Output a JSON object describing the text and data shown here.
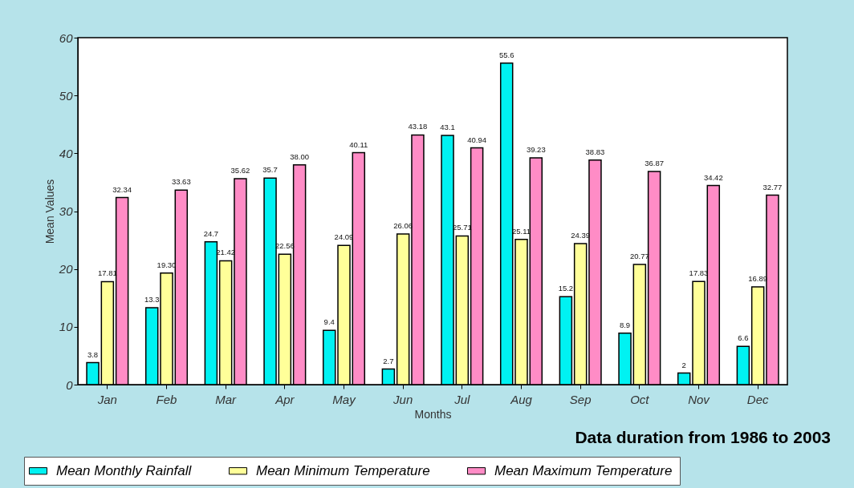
{
  "chart_data": {
    "type": "bar",
    "categories": [
      "Jan",
      "Feb",
      "Mar",
      "Apr",
      "May",
      "Jun",
      "Jul",
      "Aug",
      "Sep",
      "Oct",
      "Nov",
      "Dec"
    ],
    "xlabel": "Months",
    "ylabel": "Mean Values",
    "ylim": [
      0,
      60
    ],
    "yticks": [
      0,
      10,
      20,
      30,
      40,
      50,
      60
    ],
    "grid": false,
    "legend": "bottom",
    "annotations": [
      "Data duration from 1986 to 2003"
    ],
    "series": [
      {
        "name": "Mean Monthly Rainfall",
        "color": "#00f2f2",
        "values": [
          3.8,
          13.3,
          24.7,
          35.7,
          9.4,
          2.7,
          43.1,
          55.6,
          15.2,
          8.9,
          2,
          6.6
        ],
        "value_labels": [
          "3.8",
          "13.3",
          "24.7",
          "35.7",
          "9.4",
          "2.7",
          "43.1",
          "55.6",
          "15.2",
          "8.9",
          "2",
          "6.6"
        ]
      },
      {
        "name": "Mean Minimum Temperature",
        "color": "#ffff99",
        "values": [
          17.81,
          19.3,
          21.42,
          22.56,
          24.09,
          26.06,
          25.71,
          25.11,
          24.39,
          20.77,
          17.83,
          16.89
        ],
        "value_labels": [
          "17.81",
          "19.30",
          "21.42",
          "22.56",
          "24.09",
          "26.06",
          "25.71",
          "25.11",
          "24.39",
          "20.77",
          "17.83",
          "16.89"
        ]
      },
      {
        "name": "Mean Maximum Temperature",
        "color": "#ff8cc6",
        "values": [
          32.34,
          33.63,
          35.62,
          38.0,
          40.11,
          43.18,
          40.94,
          39.23,
          38.83,
          36.87,
          34.42,
          32.77
        ],
        "value_labels": [
          "32.34",
          "33.63",
          "35.62",
          "38.00",
          "40.11",
          "43.18",
          "40.94",
          "39.23",
          "38.83",
          "36.87",
          "34.42",
          "32.77"
        ]
      }
    ]
  }
}
